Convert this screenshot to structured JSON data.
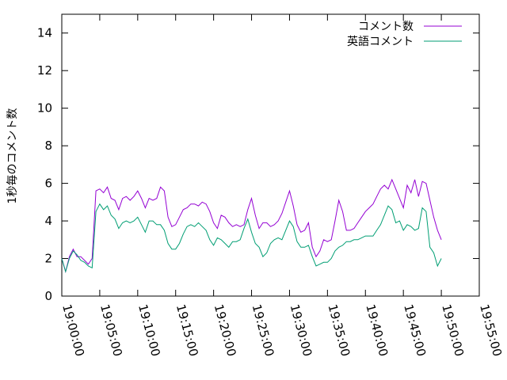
{
  "chart_data": {
    "type": "line",
    "ylabel": "1秒毎のコメント数",
    "xlabel": "",
    "ylim": [
      0,
      15
    ],
    "xlim": [
      "19:00:00",
      "19:55:00"
    ],
    "y_ticks": [
      "0",
      "2",
      "4",
      "6",
      "8",
      "10",
      "12",
      "14"
    ],
    "x_ticks": [
      "19:00:00",
      "19:05:00",
      "19:10:00",
      "19:15:00",
      "19:20:00",
      "19:25:00",
      "19:30:00",
      "19:35:00",
      "19:40:00",
      "19:45:00",
      "19:50:00",
      "19:55:00"
    ],
    "grid": false,
    "legend_position": "top-right",
    "x": [
      "19:00:00",
      "19:00:30",
      "19:01:00",
      "19:01:30",
      "19:02:00",
      "19:02:30",
      "19:03:00",
      "19:03:30",
      "19:04:00",
      "19:04:30",
      "19:05:00",
      "19:05:30",
      "19:06:00",
      "19:06:30",
      "19:07:00",
      "19:07:30",
      "19:08:00",
      "19:08:30",
      "19:09:00",
      "19:09:30",
      "19:10:00",
      "19:10:30",
      "19:11:00",
      "19:11:30",
      "19:12:00",
      "19:12:30",
      "19:13:00",
      "19:13:30",
      "19:14:00",
      "19:14:30",
      "19:15:00",
      "19:15:30",
      "19:16:00",
      "19:16:30",
      "19:17:00",
      "19:17:30",
      "19:18:00",
      "19:18:30",
      "19:19:00",
      "19:19:30",
      "19:20:00",
      "19:20:30",
      "19:21:00",
      "19:21:30",
      "19:22:00",
      "19:22:30",
      "19:23:00",
      "19:23:30",
      "19:24:00",
      "19:24:30",
      "19:25:00",
      "19:25:30",
      "19:26:00",
      "19:26:30",
      "19:27:00",
      "19:27:30",
      "19:28:00",
      "19:28:30",
      "19:29:00",
      "19:29:30",
      "19:30:00",
      "19:30:30",
      "19:31:00",
      "19:31:30",
      "19:32:00",
      "19:32:30",
      "19:33:00",
      "19:33:30",
      "19:34:00",
      "19:34:30",
      "19:35:00",
      "19:35:30",
      "19:36:00",
      "19:36:30",
      "19:37:00",
      "19:37:30",
      "19:38:00",
      "19:38:30",
      "19:39:00",
      "19:39:30",
      "19:40:00",
      "19:40:30",
      "19:41:00",
      "19:41:30",
      "19:42:00",
      "19:42:30",
      "19:43:00",
      "19:43:30",
      "19:44:00",
      "19:44:30",
      "19:45:00",
      "19:45:30",
      "19:46:00",
      "19:46:30",
      "19:47:00",
      "19:47:30",
      "19:48:00",
      "19:48:30",
      "19:49:00",
      "19:49:30",
      "19:50:00"
    ],
    "series": [
      {
        "name": "コメント数",
        "color": "#9400d3",
        "values": [
          2.0,
          1.3,
          2.1,
          2.5,
          2.1,
          2.1,
          1.9,
          1.7,
          2.0,
          5.6,
          5.7,
          5.5,
          5.8,
          5.2,
          5.1,
          4.6,
          5.2,
          5.3,
          5.1,
          5.3,
          5.6,
          5.2,
          4.7,
          5.2,
          5.1,
          5.2,
          5.8,
          5.6,
          4.2,
          3.7,
          3.8,
          4.2,
          4.6,
          4.7,
          4.9,
          4.9,
          4.8,
          5.0,
          4.9,
          4.5,
          3.9,
          3.6,
          4.3,
          4.2,
          3.9,
          3.7,
          3.8,
          3.7,
          3.8,
          4.6,
          5.2,
          4.3,
          3.6,
          3.9,
          3.9,
          3.7,
          3.8,
          4.0,
          4.4,
          5.0,
          5.6,
          4.8,
          3.8,
          3.4,
          3.5,
          3.9,
          2.6,
          2.1,
          2.4,
          3.0,
          2.9,
          3.0,
          4.0,
          5.1,
          4.5,
          3.5,
          3.5,
          3.6,
          3.9,
          4.2,
          4.5,
          4.7,
          4.9,
          5.3,
          5.7,
          5.9,
          5.7,
          6.2,
          5.7,
          5.2,
          4.7,
          5.9,
          5.5,
          6.2,
          5.3,
          6.1,
          6.0,
          5.1,
          4.2,
          3.5,
          3.0
        ]
      },
      {
        "name": "英語コメント",
        "color": "#009e73",
        "values": [
          2.0,
          1.3,
          2.0,
          2.4,
          2.2,
          1.9,
          1.8,
          1.6,
          1.5,
          4.5,
          4.9,
          4.6,
          4.8,
          4.3,
          4.1,
          3.6,
          3.9,
          4.0,
          3.9,
          4.0,
          4.2,
          3.8,
          3.4,
          4.0,
          4.0,
          3.8,
          3.8,
          3.5,
          2.8,
          2.5,
          2.5,
          2.8,
          3.3,
          3.7,
          3.8,
          3.7,
          3.9,
          3.7,
          3.5,
          3.0,
          2.7,
          3.1,
          3.0,
          2.8,
          2.6,
          2.9,
          2.9,
          3.0,
          3.6,
          4.1,
          3.4,
          2.8,
          2.6,
          2.1,
          2.3,
          2.8,
          3.0,
          3.1,
          3.0,
          3.5,
          4.0,
          3.7,
          2.9,
          2.6,
          2.6,
          2.7,
          2.1,
          1.6,
          1.7,
          1.8,
          1.8,
          2.0,
          2.4,
          2.6,
          2.7,
          2.9,
          2.9,
          3.0,
          3.0,
          3.1,
          3.2,
          3.2,
          3.2,
          3.5,
          3.8,
          4.3,
          4.8,
          4.6,
          3.9,
          4.0,
          3.5,
          3.8,
          3.7,
          3.5,
          3.6,
          4.7,
          4.5,
          2.6,
          2.3,
          1.6,
          2.0
        ]
      }
    ]
  }
}
